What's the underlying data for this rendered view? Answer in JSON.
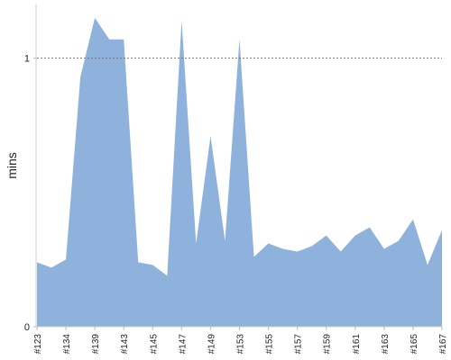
{
  "chart_data": {
    "type": "area",
    "ylabel": "mins",
    "categories": [
      "#123",
      null,
      "#134",
      null,
      "#139",
      null,
      "#143",
      null,
      "#145",
      null,
      "#147",
      null,
      "#149",
      null,
      "#153",
      null,
      "#155",
      null,
      "#157",
      null,
      "#159",
      null,
      "#161",
      null,
      "#163",
      null,
      "#165",
      null,
      "#167"
    ],
    "series": [
      {
        "name": "mins",
        "color": "#8fb2dc",
        "values": [
          0.24,
          0.22,
          0.25,
          0.93,
          1.15,
          1.07,
          1.07,
          0.24,
          0.23,
          0.19,
          1.14,
          0.31,
          0.71,
          0.32,
          1.07,
          0.26,
          0.31,
          0.29,
          0.28,
          0.3,
          0.34,
          0.28,
          0.34,
          0.37,
          0.29,
          0.32,
          0.4,
          0.23,
          0.36
        ]
      }
    ],
    "ylim": [
      0,
      1.2
    ],
    "yticks": [
      0,
      1
    ],
    "grid": true
  }
}
